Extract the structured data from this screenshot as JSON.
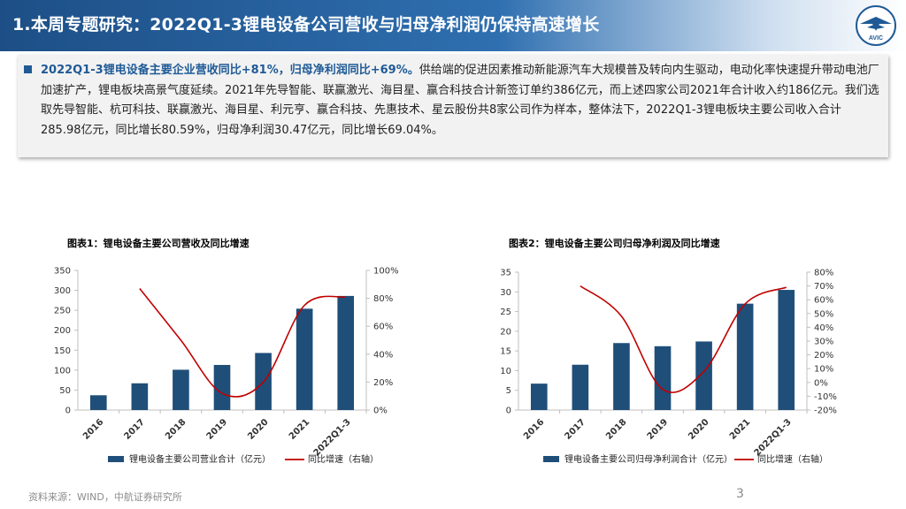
{
  "header": {
    "title": "1.本周专题研究：2022Q1-3锂电设备公司营收与归母净利润仍保持高速增长"
  },
  "summary": {
    "highlight": "2022Q1-3锂电设备主要企业营收同比+81%，归母净利润同比+69%。",
    "body": "供给端的促进因素推动新能源汽车大规模普及转向内生驱动，电动化率快速提升带动电池厂加速扩产，锂电板块高景气度延续。2021年先导智能、联赢激光、海目星、赢合科技合计新签订单约386亿元，而上述四家公司2021年合计收入约186亿元。我们选取先导智能、杭可科技、联赢激光、海目星、利元亨、赢合科技、先惠技术、星云股份共8家公司作为样本，整体法下，2022Q1-3锂电板块主要公司收入合计285.98亿元，同比增长80.59%，归母净利润30.47亿元，同比增长69.04%。"
  },
  "chart_data": [
    {
      "type": "bar+line",
      "title": "图表1：锂电设备主要公司营收及同比增速",
      "categories": [
        "2016",
        "2017",
        "2018",
        "2019",
        "2020",
        "2021",
        "2022Q1-3"
      ],
      "series": [
        {
          "name": "锂电设备主要公司营业合计（亿元）",
          "type": "bar",
          "axis": "left",
          "values": [
            37,
            67,
            101,
            113,
            143,
            254,
            286
          ]
        },
        {
          "name": "同比增速（右轴）",
          "type": "line",
          "axis": "right",
          "values": [
            null,
            87,
            50,
            12,
            20,
            75,
            81
          ]
        }
      ],
      "left_axis": {
        "min": 0,
        "max": 350,
        "ticks": [
          "0",
          "50",
          "100",
          "150",
          "200",
          "250",
          "300",
          "350"
        ]
      },
      "right_axis": {
        "min": 0,
        "max": 100,
        "ticks": [
          "0%",
          "20%",
          "40%",
          "60%",
          "80%",
          "100%"
        ]
      },
      "legend_position": "bottom",
      "colors": {
        "bar": "#1f4e79",
        "line": "#c00000"
      }
    },
    {
      "type": "bar+line",
      "title": "图表2：锂电设备主要公司归母净利润及同比增速",
      "categories": [
        "2016",
        "2017",
        "2018",
        "2019",
        "2020",
        "2021",
        "2022Q1-3"
      ],
      "series": [
        {
          "name": "锂电设备主要公司归母净利润合计（亿元）",
          "type": "bar",
          "axis": "left",
          "values": [
            6.7,
            11.5,
            17,
            16.2,
            17.4,
            27,
            30.5
          ]
        },
        {
          "name": "同比增速（右轴）",
          "type": "line",
          "axis": "right",
          "values": [
            null,
            70,
            48,
            -5,
            8,
            57,
            69
          ]
        }
      ],
      "left_axis": {
        "min": 0,
        "max": 35,
        "ticks": [
          "0",
          "5",
          "10",
          "15",
          "20",
          "25",
          "30",
          "35"
        ]
      },
      "right_axis": {
        "min": -20,
        "max": 80,
        "ticks": [
          "-20%",
          "-10%",
          "0%",
          "10%",
          "20%",
          "30%",
          "40%",
          "50%",
          "60%",
          "70%",
          "80%"
        ]
      },
      "legend_position": "bottom",
      "colors": {
        "bar": "#1f4e79",
        "line": "#c00000"
      }
    }
  ],
  "footer": {
    "source": "资料来源：WIND，中航证券研究所",
    "page": "3"
  },
  "logo": {
    "text": "AVIC"
  }
}
